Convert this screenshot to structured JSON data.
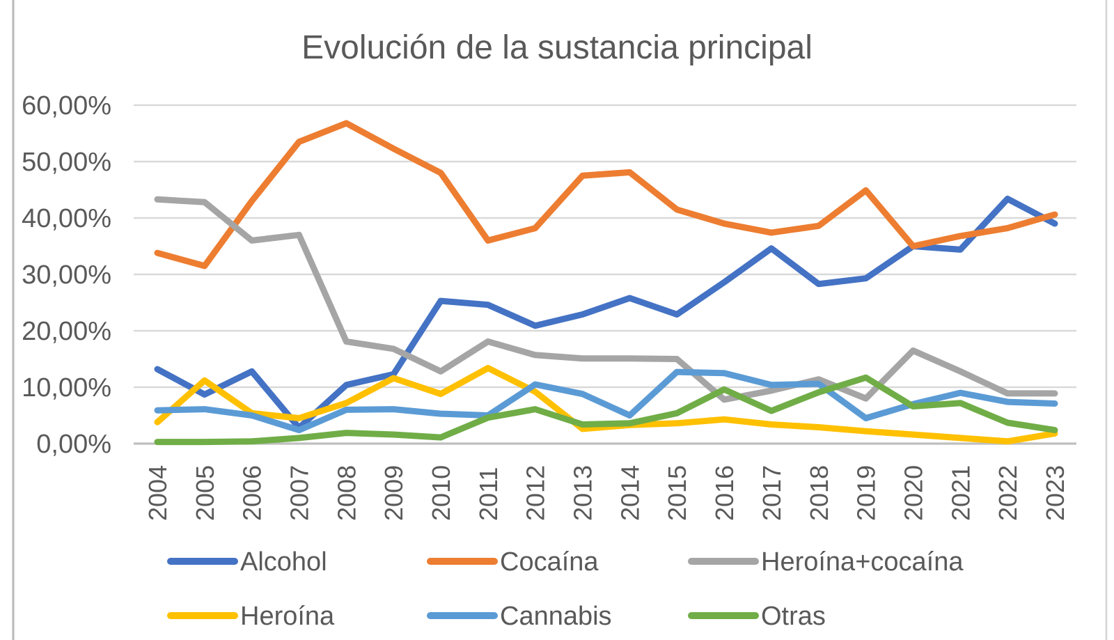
{
  "title": "Evolución de la sustancia principal",
  "y_axis": {
    "tick_labels": [
      "60,00%",
      "50,00%",
      "40,00%",
      "30,00%",
      "20,00%",
      "10,00%",
      "0,00%"
    ],
    "tick_values": [
      60,
      50,
      40,
      30,
      20,
      10,
      0
    ]
  },
  "chart_data": {
    "type": "line",
    "title": "Evolución de la sustancia principal",
    "categories": [
      "2004",
      "2005",
      "2006",
      "2007",
      "2008",
      "2009",
      "2010",
      "2011",
      "2012",
      "2013",
      "2014",
      "2015",
      "2016",
      "2017",
      "2018",
      "2019",
      "2020",
      "2021",
      "2022",
      "2023"
    ],
    "xlabel": "",
    "ylabel": "",
    "ylim": [
      0,
      60
    ],
    "y_tick_step": 10,
    "y_tick_format": "##,00%",
    "grid": true,
    "legend_position": "bottom",
    "series": [
      {
        "name": "Alcohol",
        "color": "#4472C4",
        "values": [
          13.2,
          8.7,
          12.8,
          2.8,
          10.4,
          12.3,
          25.3,
          24.6,
          20.9,
          22.9,
          25.8,
          22.9,
          28.6,
          34.6,
          28.3,
          29.3,
          35.0,
          34.4,
          43.4,
          39.0
        ]
      },
      {
        "name": "Cocaína",
        "color": "#ED7D31",
        "values": [
          33.8,
          31.5,
          43.0,
          53.5,
          56.8,
          52.3,
          48.0,
          36.0,
          38.2,
          47.5,
          48.1,
          41.5,
          39.0,
          37.4,
          38.6,
          44.9,
          35.0,
          36.8,
          38.2,
          40.6
        ]
      },
      {
        "name": "Heroína+cocaína",
        "color": "#A5A5A5",
        "values": [
          43.3,
          42.8,
          36.0,
          37.0,
          18.1,
          16.8,
          12.8,
          18.1,
          15.7,
          15.1,
          15.1,
          15.0,
          7.8,
          9.4,
          11.4,
          8.0,
          16.5,
          12.8,
          8.9,
          8.9
        ]
      },
      {
        "name": "Heroína",
        "color": "#FFC000",
        "values": [
          3.8,
          11.2,
          5.4,
          4.5,
          7.2,
          11.6,
          8.8,
          13.4,
          9.2,
          2.6,
          3.3,
          3.6,
          4.3,
          3.4,
          2.9,
          2.2,
          1.6,
          1.0,
          0.4,
          1.8
        ]
      },
      {
        "name": "Cannabis",
        "color": "#5B9BD5",
        "values": [
          5.9,
          6.1,
          5.0,
          2.4,
          6.0,
          6.1,
          5.3,
          5.0,
          10.5,
          8.8,
          5.0,
          12.7,
          12.5,
          10.4,
          10.6,
          4.5,
          7.0,
          9.0,
          7.4,
          7.1
        ]
      },
      {
        "name": "Otras",
        "color": "#70AD47",
        "values": [
          0.3,
          0.3,
          0.4,
          1.0,
          1.9,
          1.6,
          1.1,
          4.6,
          6.1,
          3.4,
          3.6,
          5.4,
          9.6,
          5.8,
          9.1,
          11.7,
          6.6,
          7.2,
          3.7,
          2.4
        ]
      }
    ]
  },
  "legend": {
    "rows": [
      [
        "Alcohol",
        "Cocaína",
        "Heroína+cocaína"
      ],
      [
        "Heroína",
        "Cannabis",
        "Otras"
      ]
    ]
  },
  "colors": {
    "text": "#595959",
    "gridline": "#D9D9D9",
    "axis_line": "#BFBFBF",
    "page_border": "#BDBDBD"
  }
}
